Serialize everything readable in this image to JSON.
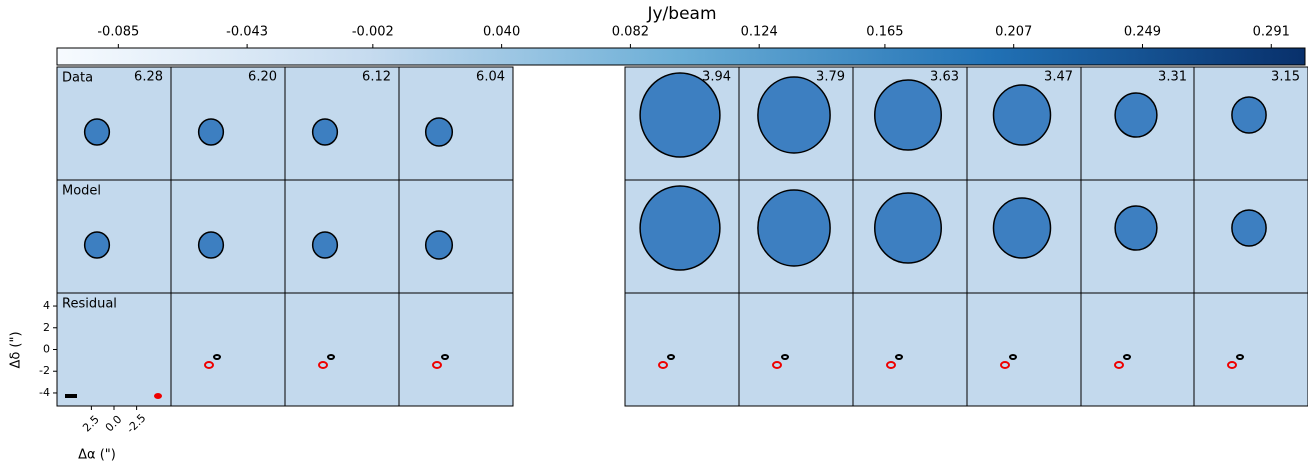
{
  "colorbar": {
    "label": "Jy/beam",
    "lim": [
      -0.105,
      0.302
    ],
    "ticks": [
      -0.085,
      -0.043,
      -0.002,
      {
        "value": 0.04,
        "label": "0.040"
      },
      0.082,
      0.124,
      0.165,
      0.207,
      0.249,
      0.291
    ]
  },
  "rows": [
    "Data",
    "Model",
    "Residual"
  ],
  "channels": [
    6.28,
    {
      "value": 6.2,
      "label": "6.20"
    },
    6.12,
    6.04,
    3.94,
    3.79,
    3.63,
    3.47,
    3.31,
    3.15
  ],
  "axes": {
    "x_label": "Δα (\")",
    "y_label": "Δδ (\")",
    "xlim": [
      6.3,
      -6.3
    ],
    "ylim": [
      -5.2,
      5.2
    ],
    "x_ticks": [
      2.5,
      {
        "value": 0,
        "label": "0.0"
      },
      -2.5
    ],
    "y_ticks": [
      4,
      2,
      0,
      -2,
      -4
    ]
  }
}
